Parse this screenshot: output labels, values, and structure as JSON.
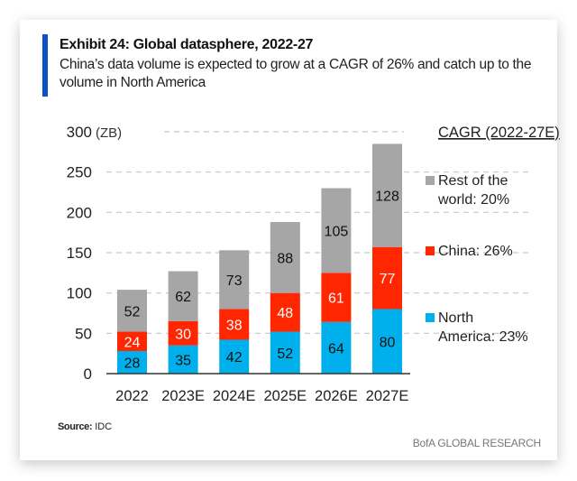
{
  "header": {
    "title": "Exhibit 24: Global datasphere, 2022-27",
    "subtitle": "China’s data volume is expected to grow at a CAGR of 26% and catch up to the volume in North America"
  },
  "footer": {
    "source_label": "Source:",
    "source_value": "IDC",
    "brand": "BofA GLOBAL RESEARCH"
  },
  "chart_data": {
    "type": "bar",
    "stacked": true,
    "title": "Exhibit 24: Global datasphere, 2022-27",
    "xlabel": "",
    "ylabel": "(ZB)",
    "ylim": [
      0,
      300
    ],
    "yticks": [
      0,
      50,
      100,
      150,
      200,
      250,
      300
    ],
    "grid": true,
    "categories": [
      "2022",
      "2023E",
      "2024E",
      "2025E",
      "2026E",
      "2027E"
    ],
    "series": [
      {
        "name": "North America",
        "legend": "North America: 23%",
        "color": "#00b0ec",
        "label_color": "#111111",
        "values": [
          28,
          35,
          42,
          52,
          64,
          80
        ]
      },
      {
        "name": "China",
        "legend": "China: 26%",
        "color": "#ff2600",
        "label_color": "#ffffff",
        "values": [
          24,
          30,
          38,
          48,
          61,
          77
        ]
      },
      {
        "name": "Rest of the world",
        "legend": "Rest of the world: 20%",
        "color": "#a6a6a6",
        "label_color": "#111111",
        "values": [
          52,
          62,
          73,
          88,
          105,
          128
        ]
      }
    ],
    "legend_title": "CAGR (2022-27E)",
    "legend_position": "right"
  }
}
